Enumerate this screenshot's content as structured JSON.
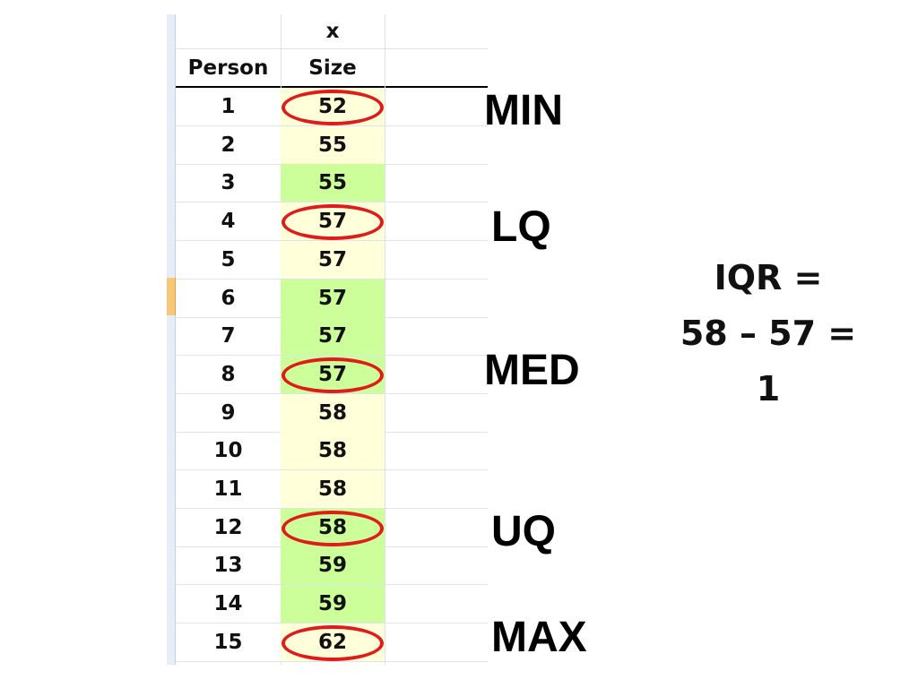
{
  "table": {
    "column_headers": {
      "person": "Person",
      "size_top": "x",
      "size": "Size"
    },
    "rows": [
      {
        "person": "1",
        "size": "52",
        "fill": "#ffffd9",
        "circled": true
      },
      {
        "person": "2",
        "size": "55",
        "fill": "#ffffd9",
        "circled": false
      },
      {
        "person": "3",
        "size": "55",
        "fill": "#ccff99",
        "circled": false
      },
      {
        "person": "4",
        "size": "57",
        "fill": "#ffffd9",
        "circled": true
      },
      {
        "person": "5",
        "size": "57",
        "fill": "#ffffd9",
        "circled": false
      },
      {
        "person": "6",
        "size": "57",
        "fill": "#ccff99",
        "circled": false
      },
      {
        "person": "7",
        "size": "57",
        "fill": "#ccff99",
        "circled": false
      },
      {
        "person": "8",
        "size": "57",
        "fill": "#ccff99",
        "circled": true
      },
      {
        "person": "9",
        "size": "58",
        "fill": "#ffffd9",
        "circled": false
      },
      {
        "person": "10",
        "size": "58",
        "fill": "#ffffd9",
        "circled": false
      },
      {
        "person": "11",
        "size": "58",
        "fill": "#ffffd9",
        "circled": false
      },
      {
        "person": "12",
        "size": "58",
        "fill": "#ccff99",
        "circled": true
      },
      {
        "person": "13",
        "size": "59",
        "fill": "#ccff99",
        "circled": false
      },
      {
        "person": "14",
        "size": "59",
        "fill": "#ccff99",
        "circled": false
      },
      {
        "person": "15",
        "size": "62",
        "fill": "#ffffd9",
        "circled": true
      }
    ]
  },
  "labels": {
    "min": "MIN",
    "lq": "LQ",
    "med": "MED",
    "uq": "UQ",
    "max": "MAX"
  },
  "iqr": {
    "line1": "IQR =",
    "line2": "58 – 57 =",
    "line3": "1"
  },
  "colors": {
    "circle": "#e01b1b",
    "highlight_green": "#ccff99",
    "highlight_yellow": "#ffffd9",
    "active_row_header": "#f7c87a"
  }
}
